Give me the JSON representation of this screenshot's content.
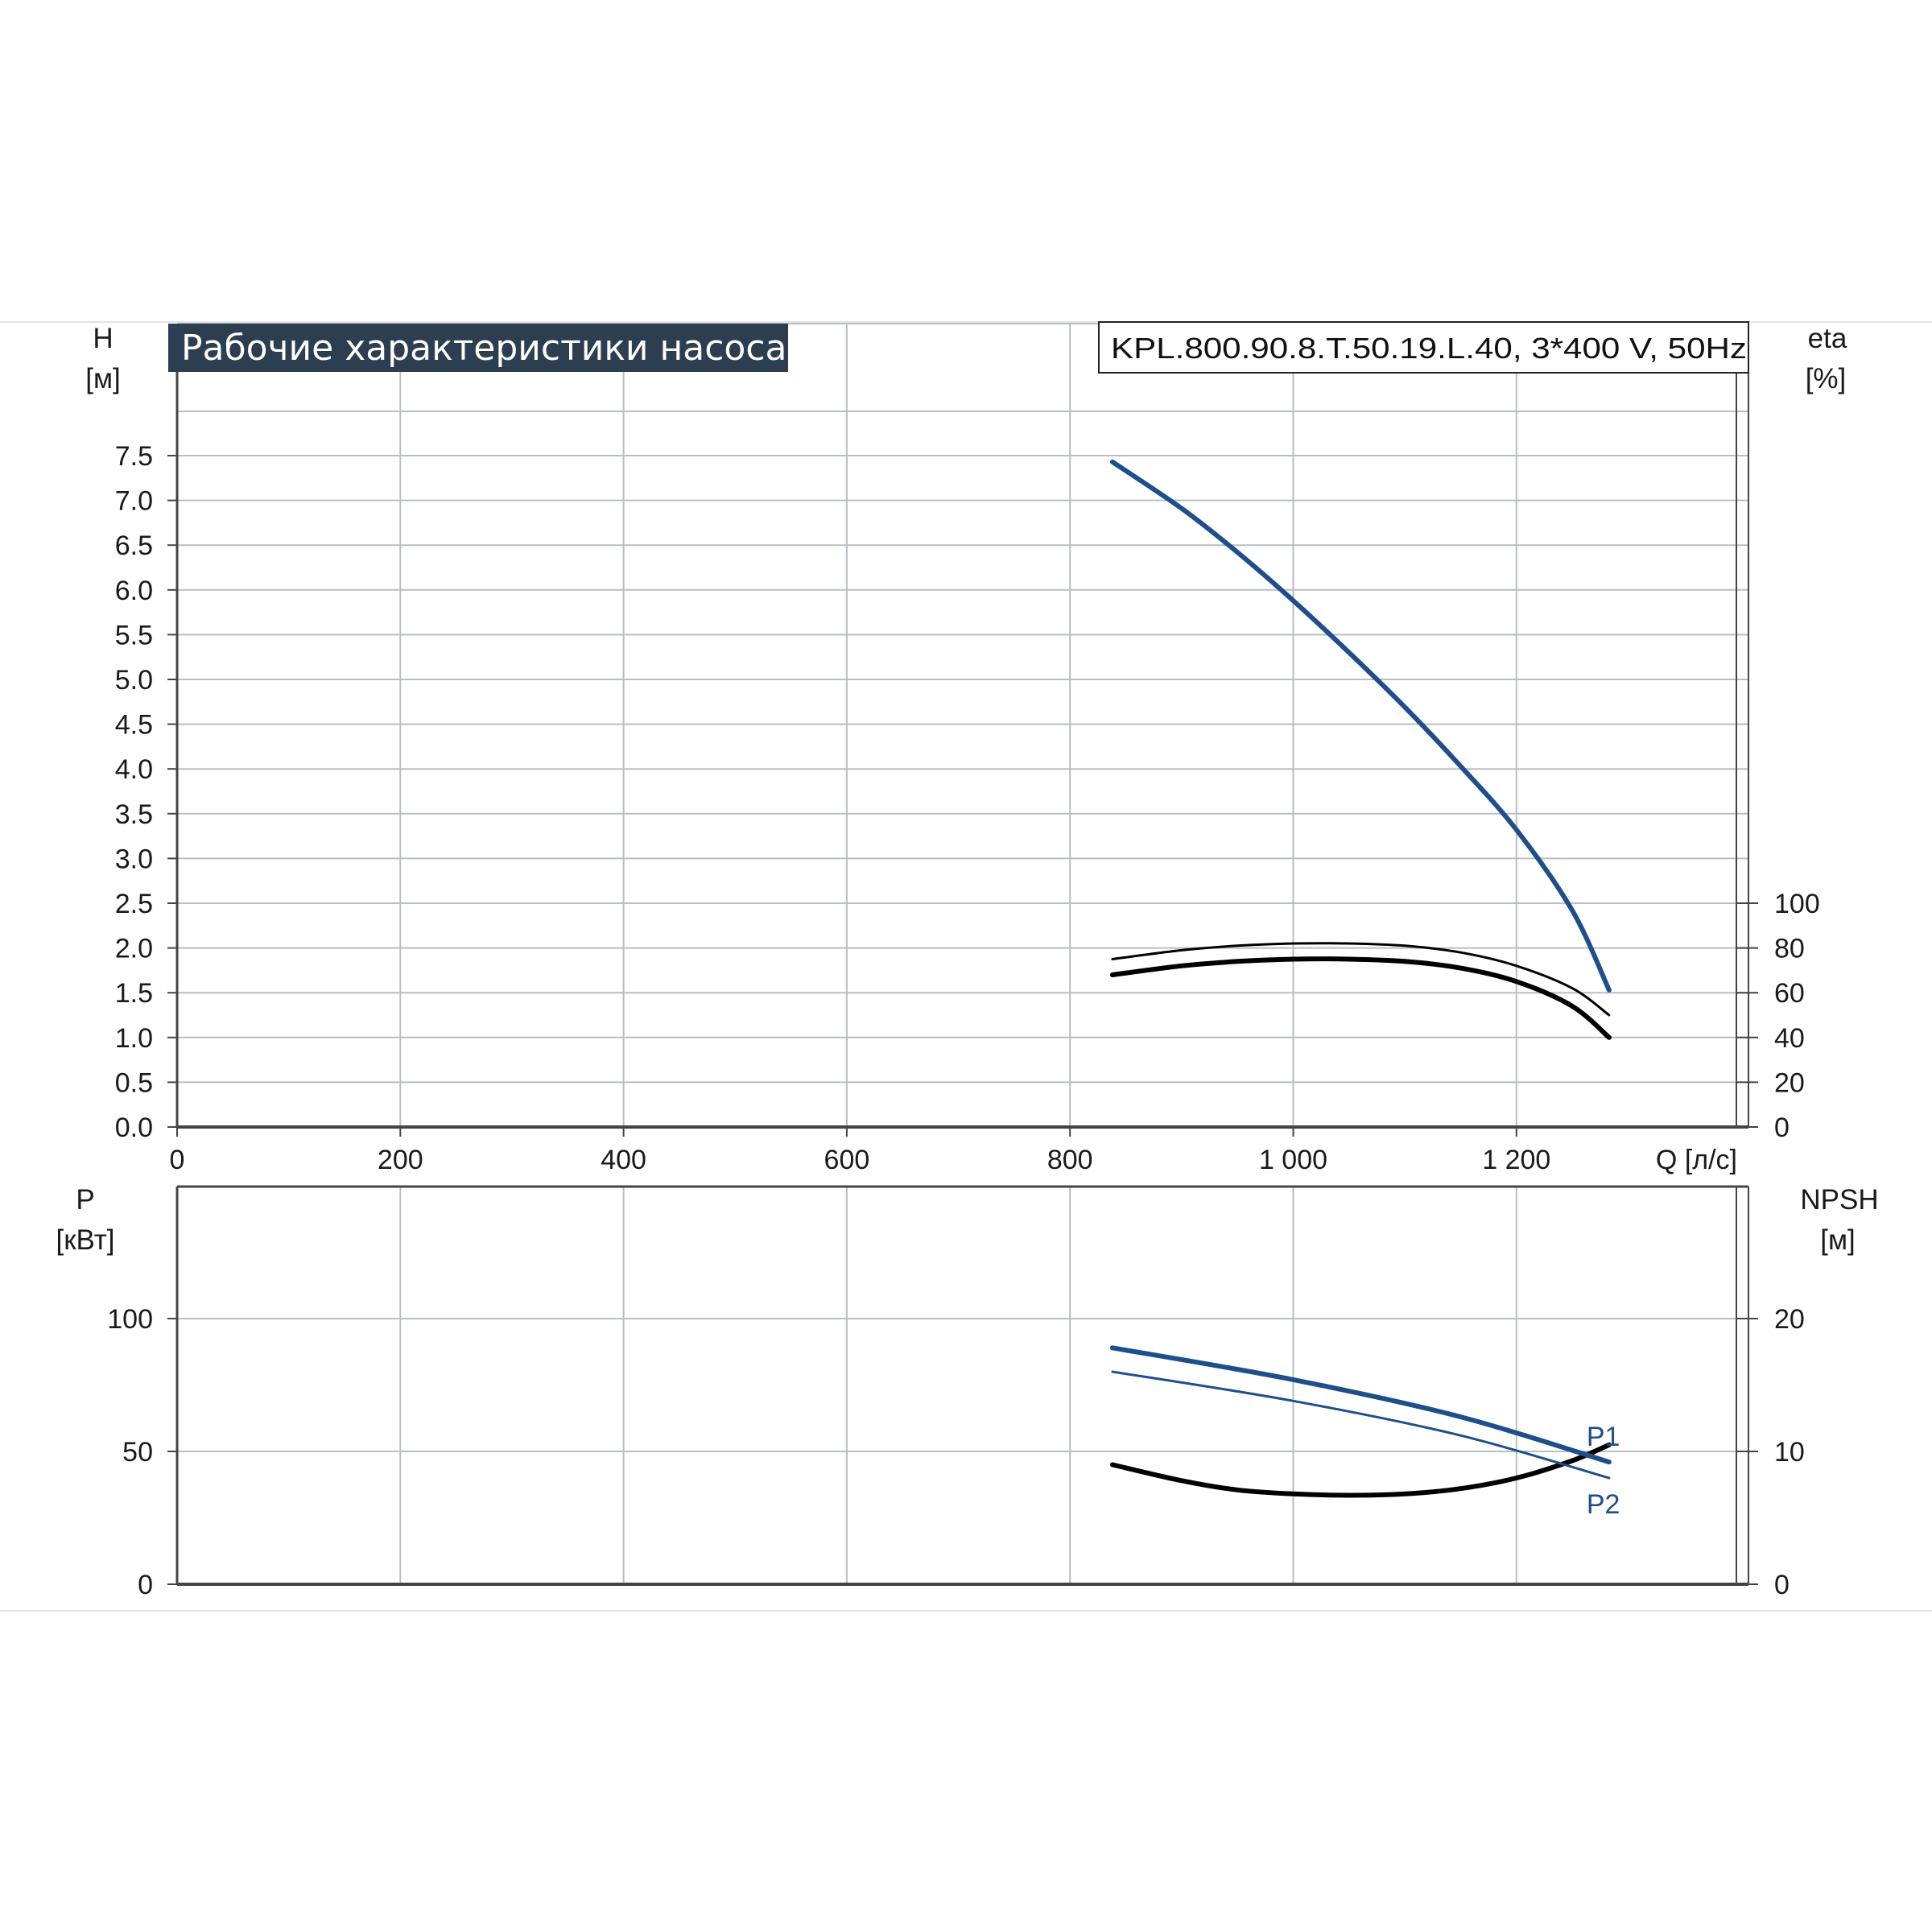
{
  "title": "Рабочие характеристики насоса",
  "model": "KPL.800.90.8.T.50.19.L.40, 3*400 V, 50Hz",
  "colors": {
    "title_bg": "#2d3e50",
    "head_curve": "#1f4f8a",
    "power_curve": "#1f4f8a",
    "eta_curve": "#000000",
    "npsh_curve": "#000000",
    "grid": "#b9bec4",
    "axis": "#444444"
  },
  "chart_data": [
    {
      "type": "line",
      "name": "upper-chart",
      "xlabel": "Q [л/с]",
      "ylabel_left": [
        "H",
        "[м]"
      ],
      "ylabel_right": [
        "eta",
        "[%]"
      ],
      "xlim": [
        0,
        1400
      ],
      "x_ticks": [
        0,
        200,
        400,
        600,
        800,
        1000,
        1200
      ],
      "x_tick_labels": [
        "0",
        "200",
        "400",
        "600",
        "800",
        "1 000",
        "1 200"
      ],
      "ylim_left": [
        0,
        7.5
      ],
      "y_ticks_left": [
        0,
        0.5,
        1.0,
        1.5,
        2.0,
        2.5,
        3.0,
        3.5,
        4.0,
        4.5,
        5.0,
        5.5,
        6.0,
        6.5,
        7.0,
        7.5
      ],
      "y_tick_labels_left": [
        "0.0",
        "0.5",
        "1.0",
        "1.5",
        "2.0",
        "2.5",
        "3.0",
        "3.5",
        "4.0",
        "4.5",
        "5.0",
        "5.5",
        "6.0",
        "6.5",
        "7.0",
        "7.5"
      ],
      "y_ticks_right": [
        0,
        20,
        40,
        60,
        80,
        100
      ],
      "y_tick_labels_right": [
        "0",
        "20",
        "40",
        "60",
        "80",
        "100"
      ],
      "grid": true,
      "series": [
        {
          "axis": "left",
          "x": [
            838,
            900,
            950,
            1000,
            1050,
            1100,
            1150,
            1200,
            1250,
            1283
          ],
          "y": [
            7.43,
            6.91,
            6.42,
            5.88,
            5.3,
            4.69,
            4.03,
            3.32,
            2.42,
            1.53
          ]
        },
        {
          "axis": "right",
          "x": [
            838,
            900,
            950,
            1000,
            1050,
            1100,
            1150,
            1200,
            1250,
            1283
          ],
          "y": [
            75,
            79,
            81,
            82,
            82,
            81,
            78,
            72,
            62,
            50
          ]
        },
        {
          "axis": "right",
          "x": [
            838,
            900,
            950,
            1000,
            1050,
            1100,
            1150,
            1200,
            1250,
            1283
          ],
          "y": [
            68,
            72,
            74,
            75,
            75,
            74,
            71,
            65,
            54,
            40
          ]
        }
      ]
    },
    {
      "type": "line",
      "name": "lower-chart",
      "ylabel_left": [
        "P",
        "[кВт]"
      ],
      "ylabel_right": [
        "NPSH",
        "[м]"
      ],
      "xlim": [
        0,
        1400
      ],
      "ylim_left": [
        0,
        150
      ],
      "y_ticks_left": [
        0,
        50,
        100
      ],
      "y_tick_labels_left": [
        "0",
        "50",
        "100"
      ],
      "ylim_right": [
        0,
        30
      ],
      "y_ticks_right": [
        0,
        10,
        20
      ],
      "y_tick_labels_right": [
        "0",
        "10",
        "20"
      ],
      "grid": true,
      "series": [
        {
          "name": "P1",
          "axis": "left",
          "x": [
            838,
            1000,
            1150,
            1283
          ],
          "y": [
            89,
            77,
            63,
            46
          ]
        },
        {
          "name": "P2",
          "axis": "left",
          "x": [
            838,
            1000,
            1150,
            1283
          ],
          "y": [
            80,
            69,
            56,
            40
          ]
        },
        {
          "axis": "right",
          "x": [
            838,
            900,
            950,
            1000,
            1050,
            1100,
            1150,
            1200,
            1250,
            1283
          ],
          "y": [
            9.0,
            7.8,
            7.1,
            6.8,
            6.7,
            6.8,
            7.2,
            8.0,
            9.3,
            10.5
          ]
        }
      ]
    }
  ]
}
